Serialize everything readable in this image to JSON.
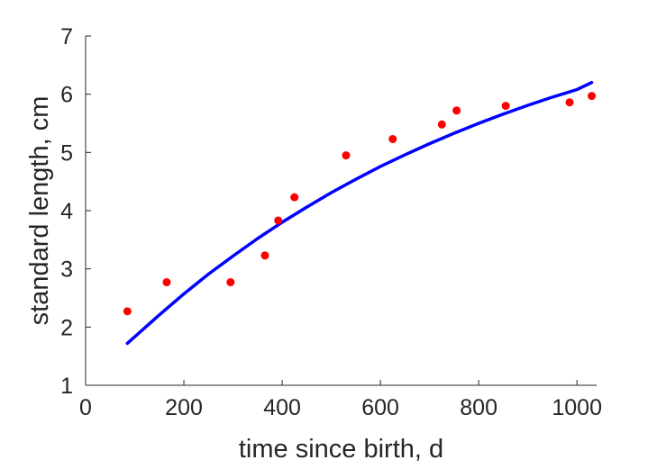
{
  "chart_data": {
    "type": "scatter",
    "title": "",
    "xlabel": "time since birth, d",
    "ylabel": "standard length, cm",
    "xlim": [
      0,
      1040
    ],
    "ylim": [
      1,
      7
    ],
    "xticks": [
      0,
      200,
      400,
      600,
      800,
      1000
    ],
    "yticks": [
      1,
      2,
      3,
      4,
      5,
      6,
      7
    ],
    "grid": false,
    "legend": "none",
    "series": [
      {
        "kind": "points",
        "color": "#ff0000",
        "x": [
          85,
          165,
          295,
          365,
          392,
          425,
          530,
          625,
          725,
          755,
          855,
          985,
          1030
        ],
        "y": [
          2.27,
          2.77,
          2.77,
          3.23,
          3.83,
          4.23,
          4.95,
          5.23,
          5.48,
          5.72,
          5.8,
          5.86,
          5.97
        ]
      },
      {
        "kind": "line",
        "color": "#0000ff",
        "x": [
          85,
          150,
          200,
          250,
          300,
          350,
          400,
          450,
          500,
          550,
          600,
          650,
          700,
          750,
          800,
          850,
          900,
          950,
          1000,
          1030
        ],
        "y": [
          1.72,
          2.21,
          2.57,
          2.91,
          3.22,
          3.52,
          3.8,
          4.06,
          4.31,
          4.54,
          4.76,
          4.96,
          5.15,
          5.33,
          5.5,
          5.66,
          5.81,
          5.95,
          6.08,
          6.2
        ]
      }
    ]
  }
}
